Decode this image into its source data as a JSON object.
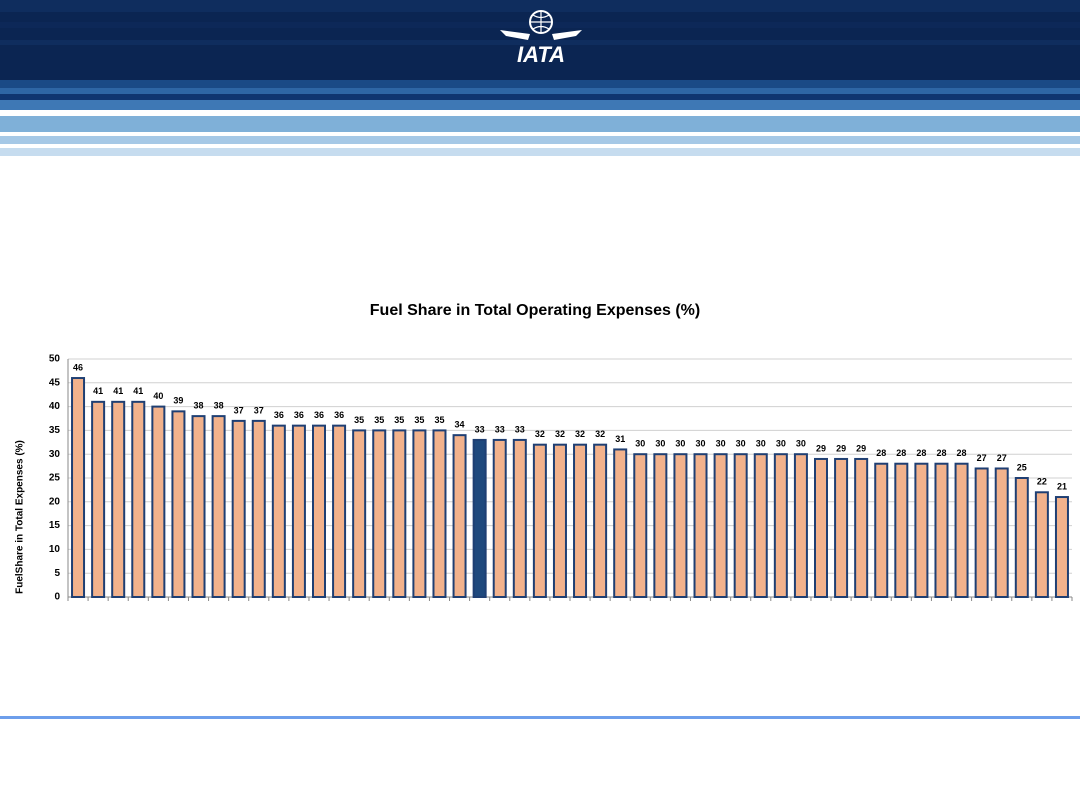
{
  "logo": "IATA",
  "chart_data": {
    "type": "bar",
    "title": "Fuel Share in Total Operating Expenses (%)",
    "ylabel": "FuelShare in Total Expenses (%)",
    "values": [
      46,
      41,
      41,
      41,
      40,
      39,
      38,
      38,
      37,
      37,
      36,
      36,
      36,
      36,
      35,
      35,
      35,
      35,
      35,
      34,
      33,
      33,
      33,
      32,
      32,
      32,
      32,
      31,
      30,
      30,
      30,
      30,
      30,
      30,
      30,
      30,
      30,
      29,
      29,
      29,
      28,
      28,
      28,
      28,
      28,
      27,
      27,
      25,
      22,
      21
    ],
    "color": "#f2b28c",
    "edge_color": "#1f3f73",
    "highlight": {
      "index": 20,
      "color": "#1f497d"
    },
    "ylim": [
      0,
      50
    ],
    "yticks": [
      0,
      5,
      10,
      15,
      20,
      25,
      30,
      35,
      40,
      45,
      50
    ],
    "grid": true
  }
}
